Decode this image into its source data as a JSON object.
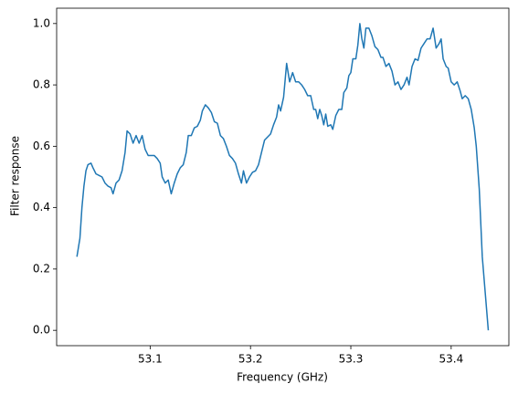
{
  "chart_data": {
    "type": "line",
    "xlabel": "Frequency (GHz)",
    "ylabel": "Filter response",
    "x": [
      53.027,
      53.03,
      53.032,
      53.034,
      53.036,
      53.038,
      53.041,
      53.043,
      53.046,
      53.049,
      53.052,
      53.055,
      53.058,
      53.061,
      53.063,
      53.066,
      53.069,
      53.072,
      53.075,
      53.077,
      53.08,
      53.083,
      53.086,
      53.089,
      53.092,
      53.095,
      53.098,
      53.101,
      53.104,
      53.107,
      53.11,
      53.112,
      53.115,
      53.118,
      53.121,
      53.124,
      53.127,
      53.13,
      53.133,
      53.136,
      53.138,
      53.141,
      53.144,
      53.147,
      53.15,
      53.152,
      53.155,
      53.158,
      53.161,
      53.164,
      53.167,
      53.17,
      53.173,
      53.176,
      53.179,
      53.182,
      53.185,
      53.188,
      53.191,
      53.193,
      53.196,
      53.199,
      53.202,
      53.205,
      53.208,
      53.211,
      53.214,
      53.217,
      53.22,
      53.223,
      53.226,
      53.228,
      53.23,
      53.233,
      53.236,
      53.239,
      53.242,
      53.245,
      53.248,
      53.251,
      53.254,
      53.257,
      53.26,
      53.263,
      53.265,
      53.267,
      53.269,
      53.271,
      53.273,
      53.275,
      53.277,
      53.28,
      53.282,
      53.285,
      53.288,
      53.291,
      53.293,
      53.296,
      53.298,
      53.3,
      53.302,
      53.305,
      53.307,
      53.309,
      53.311,
      53.313,
      53.315,
      53.318,
      53.321,
      53.324,
      53.327,
      53.33,
      53.332,
      53.335,
      53.338,
      53.341,
      53.344,
      53.347,
      53.35,
      53.353,
      53.356,
      53.358,
      53.361,
      53.364,
      53.367,
      53.37,
      53.373,
      53.376,
      53.379,
      53.382,
      53.385,
      53.388,
      53.39,
      53.392,
      53.395,
      53.397,
      53.4,
      53.403,
      53.406,
      53.409,
      53.411,
      53.414,
      53.417,
      53.42,
      53.423,
      53.425,
      53.428,
      53.431,
      53.434,
      53.437
    ],
    "series": [
      {
        "color": "#1f77b4",
        "values": [
          0.24,
          0.3,
          0.4,
          0.47,
          0.52,
          0.54,
          0.545,
          0.53,
          0.51,
          0.505,
          0.5,
          0.48,
          0.47,
          0.465,
          0.445,
          0.48,
          0.49,
          0.52,
          0.58,
          0.65,
          0.64,
          0.61,
          0.635,
          0.61,
          0.635,
          0.59,
          0.57,
          0.57,
          0.57,
          0.56,
          0.545,
          0.5,
          0.48,
          0.49,
          0.445,
          0.48,
          0.51,
          0.53,
          0.54,
          0.58,
          0.635,
          0.635,
          0.66,
          0.665,
          0.685,
          0.715,
          0.735,
          0.725,
          0.71,
          0.68,
          0.675,
          0.635,
          0.625,
          0.6,
          0.57,
          0.56,
          0.545,
          0.51,
          0.48,
          0.52,
          0.48,
          0.5,
          0.515,
          0.52,
          0.54,
          0.58,
          0.62,
          0.63,
          0.64,
          0.67,
          0.695,
          0.735,
          0.715,
          0.76,
          0.87,
          0.81,
          0.84,
          0.81,
          0.81,
          0.8,
          0.785,
          0.765,
          0.765,
          0.72,
          0.72,
          0.69,
          0.72,
          0.7,
          0.67,
          0.705,
          0.665,
          0.67,
          0.655,
          0.7,
          0.72,
          0.72,
          0.775,
          0.79,
          0.83,
          0.84,
          0.885,
          0.885,
          0.93,
          1.0,
          0.95,
          0.92,
          0.985,
          0.985,
          0.96,
          0.925,
          0.915,
          0.89,
          0.89,
          0.86,
          0.87,
          0.845,
          0.8,
          0.81,
          0.785,
          0.8,
          0.825,
          0.8,
          0.86,
          0.885,
          0.88,
          0.92,
          0.935,
          0.95,
          0.95,
          0.985,
          0.92,
          0.935,
          0.95,
          0.885,
          0.86,
          0.855,
          0.81,
          0.8,
          0.81,
          0.78,
          0.755,
          0.765,
          0.755,
          0.72,
          0.66,
          0.6,
          0.46,
          0.24,
          0.12,
          0.0
        ]
      }
    ],
    "xlim": [
      53.0068,
      53.4575
    ],
    "ylim": [
      -0.05,
      1.05
    ],
    "xticks": [
      53.1,
      53.2,
      53.3,
      53.4
    ],
    "yticks": [
      {
        "value": 0,
        "label": "0.0"
      },
      0.2,
      0.4,
      0.6,
      0.8,
      {
        "value": 1,
        "label": "1.0"
      }
    ]
  }
}
